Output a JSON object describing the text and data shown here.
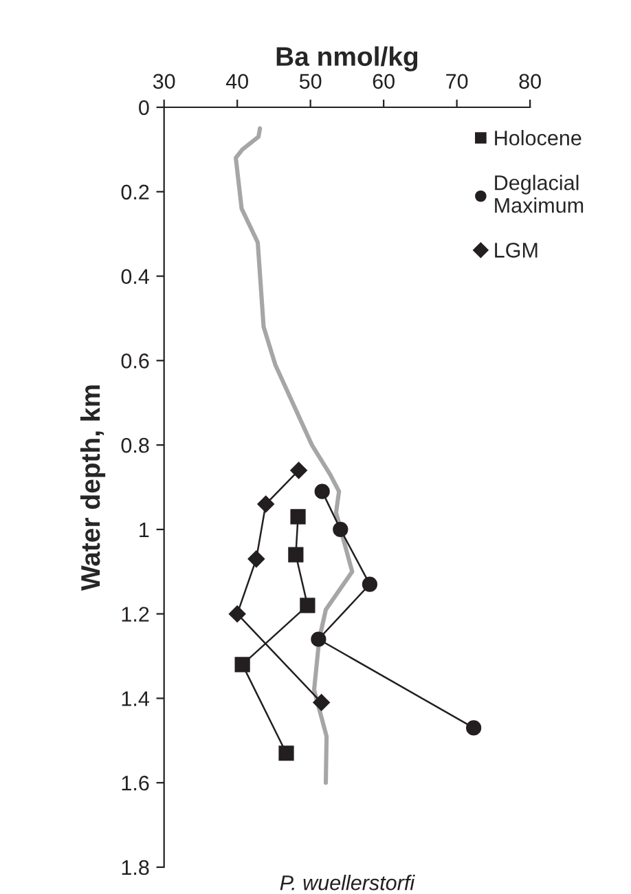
{
  "chart_data": {
    "type": "line",
    "xlabel": "Ba nmol/kg",
    "ylabel": "Water depth, km",
    "xlim": [
      30,
      80
    ],
    "xticks": [
      30,
      40,
      50,
      60,
      70,
      80
    ],
    "ylim": [
      1.8,
      0
    ],
    "yticks": [
      0,
      0.2,
      0.4,
      0.6,
      0.8,
      1,
      1.2,
      1.4,
      1.6,
      1.8
    ],
    "grid": false,
    "legend": "top right",
    "annotations": [
      "P. wuellerstorfi"
    ],
    "series": [
      {
        "color": "#a6a6a6",
        "marker": "none",
        "x": [
          43.1,
          42.9,
          40.7,
          39.8,
          40.6,
          42.8,
          43.6,
          45.2,
          50.2,
          52.7,
          53.9,
          53.5,
          55.7,
          52.1,
          51.2,
          50.5,
          52.2,
          52.1
        ],
        "values": [
          0.05,
          0.07,
          0.1,
          0.12,
          0.24,
          0.32,
          0.52,
          0.61,
          0.8,
          0.87,
          0.91,
          0.96,
          1.1,
          1.19,
          1.26,
          1.38,
          1.49,
          1.6
        ]
      },
      {
        "name": "Holocene",
        "color": "#231f20",
        "marker": "square",
        "x": [
          48.3,
          48.0,
          49.6,
          40.7,
          46.7
        ],
        "values": [
          0.97,
          1.06,
          1.18,
          1.32,
          1.53
        ]
      },
      {
        "name": "Deglacial\nMaximum",
        "color": "#231f20",
        "marker": "circle",
        "x": [
          51.6,
          54.1,
          58.1,
          51.1,
          72.3
        ],
        "values": [
          0.91,
          1.0,
          1.13,
          1.26,
          1.47
        ]
      },
      {
        "name": "LGM",
        "color": "#231f20",
        "marker": "diamond",
        "x": [
          48.4,
          43.9,
          42.6,
          40.0,
          51.5
        ],
        "values": [
          0.86,
          0.94,
          1.07,
          1.2,
          1.41
        ]
      }
    ]
  }
}
